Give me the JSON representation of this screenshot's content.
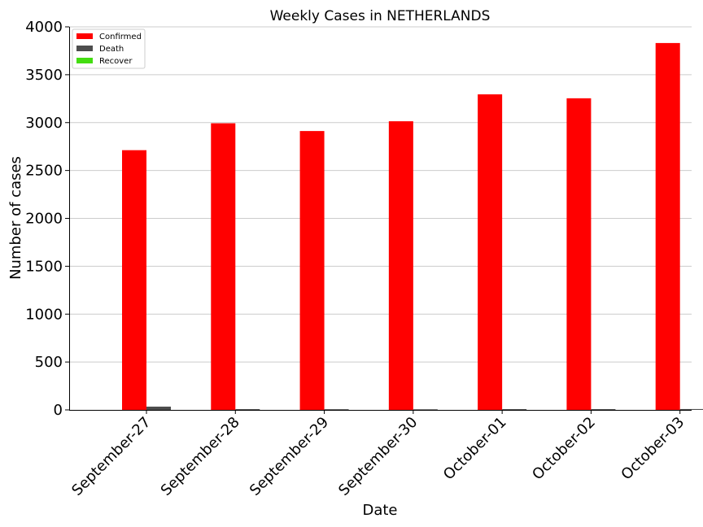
{
  "chart_data": {
    "type": "bar",
    "title": "Weekly Cases in NETHERLANDS",
    "xlabel": "Date",
    "ylabel": "Number of cases",
    "categories": [
      "September-27",
      "September-28",
      "September-29",
      "September-30",
      "October-01",
      "October-02",
      "October-03"
    ],
    "series": [
      {
        "name": "Confirmed",
        "color": "#ff0000",
        "values": [
          2712,
          2993,
          2912,
          3014,
          3295,
          3254,
          3831
        ]
      },
      {
        "name": "Death",
        "color": "#4d4d4d",
        "values": [
          34,
          8,
          7,
          6,
          8,
          8,
          9
        ]
      },
      {
        "name": "Recover",
        "color": "#44dd11",
        "values": [
          0,
          0,
          0,
          0,
          0,
          0,
          0
        ]
      }
    ],
    "ylim": [
      0,
      4000
    ],
    "yticks": [
      0,
      500,
      1000,
      1500,
      2000,
      2500,
      3000,
      3500,
      4000
    ],
    "grid": "y",
    "legend_position": "top-left"
  }
}
